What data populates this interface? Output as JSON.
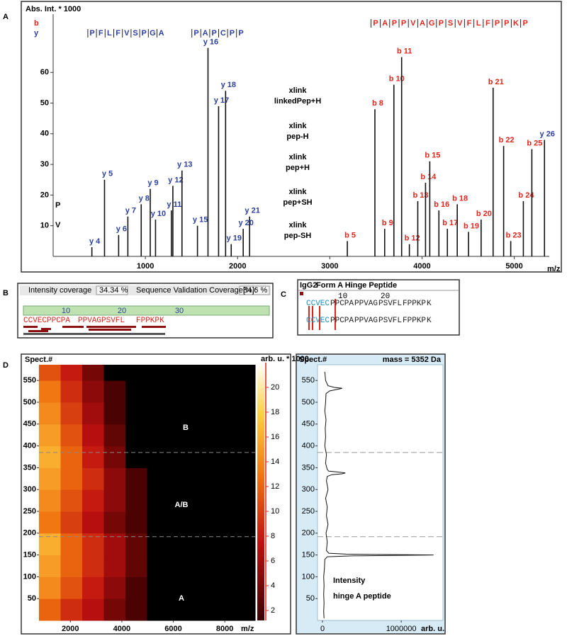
{
  "panel_labels": [
    "A",
    "B",
    "C",
    "D"
  ],
  "chart_data": [
    {
      "type": "stick",
      "y_label": "Abs. Int. * 1000",
      "x_label": "m/z",
      "xlim": [
        0,
        5380
      ],
      "ylim": [
        0,
        79
      ],
      "xticks": [
        1000,
        2000,
        3000,
        4000,
        5000
      ],
      "yticks": [
        10,
        20,
        30,
        40,
        50,
        60
      ],
      "series": [
        {
          "name": "b",
          "color": "#e0261c",
          "x": [
            3190,
            3489,
            3595,
            3695,
            3779,
            3863,
            3954,
            4038,
            4084,
            4183,
            4275,
            4382,
            4504,
            4641,
            4771,
            4885,
            4962,
            5099,
            5191
          ],
          "values": [
            5,
            48,
            9,
            56,
            65,
            4,
            18,
            24,
            31,
            15,
            9,
            17,
            8,
            12,
            55,
            36,
            5,
            18,
            35
          ],
          "labels": [
            "b 5",
            "b 8",
            "b 9",
            "b 10",
            "b 11",
            "b 12",
            "b 13",
            "b 14",
            "b 15",
            "b 16",
            "b 17",
            "b 18",
            "b 19",
            "b 20",
            "b 21",
            "b 22",
            "b 23",
            "b 24",
            "b 25"
          ]
        },
        {
          "name": "y",
          "color": "#2b3f9e",
          "x": [
            420,
            557,
            710,
            810,
            955,
            1053,
            1110,
            1282,
            1298,
            1397,
            1565,
            1679,
            1794,
            1870,
            1931,
            2061,
            2130,
            5328
          ],
          "values": [
            3,
            25,
            7,
            13,
            17,
            22,
            12,
            15,
            23,
            28,
            10,
            68,
            49,
            54,
            4,
            9,
            13,
            38
          ],
          "labels": [
            "y 4",
            "y 5",
            "y 6",
            "y 7",
            "y 8",
            "y 9",
            "y 10",
            "y 11",
            "y 12",
            "y 13",
            "y 15",
            "y 16",
            "y 17",
            "y 18",
            "y 19",
            "y 20",
            "y 21",
            "y 26"
          ]
        }
      ],
      "sequences": [
        {
          "color": "#2b3f9e",
          "residues": [
            "P",
            "F",
            "L",
            "F",
            "V",
            "S",
            "P",
            "G",
            "A"
          ]
        },
        {
          "color": "#2b3f9e",
          "residues": [
            "P",
            "A",
            "P",
            "C",
            "P",
            "P"
          ]
        },
        {
          "color": "#e0261c",
          "residues": [
            "P",
            "A",
            "P",
            "P",
            "V",
            "A",
            "G",
            "P",
            "S",
            "V",
            "F",
            "L",
            "F",
            "P",
            "P",
            "K",
            "P"
          ]
        }
      ],
      "annotations": [
        [
          "P"
        ],
        [
          "V"
        ],
        [
          "xlink",
          "linkedPep+H"
        ],
        [
          "xlink",
          "pep-H"
        ],
        [
          "xlink",
          "pep+H"
        ],
        [
          "xlink",
          "pep+SH"
        ],
        [
          "xlink",
          "pep-SH"
        ]
      ]
    },
    {
      "type": "heatmap",
      "y_label": "Spect.#",
      "x_label": "m/z",
      "colorbar_label": "arb. u. * 1000",
      "xlim": [
        780,
        9180
      ],
      "ylim": [
        0,
        586
      ],
      "xticks": [
        2000,
        4000,
        6000,
        8000
      ],
      "yticks": [
        50,
        100,
        150,
        200,
        250,
        300,
        350,
        400,
        450,
        500,
        550
      ],
      "zlim": [
        1.2,
        22
      ],
      "zticks": [
        2,
        4,
        6,
        8,
        10,
        12,
        14,
        16,
        18,
        20
      ],
      "x_bins": [
        780,
        1620,
        2460,
        3300,
        4140,
        4980,
        5820,
        6660,
        7500,
        8340,
        9180
      ],
      "y_bins": [
        0,
        50,
        100,
        150,
        200,
        250,
        300,
        350,
        400,
        450,
        500,
        550,
        586
      ],
      "z": [
        [
          12,
          9,
          7,
          4,
          2,
          1,
          0,
          0,
          0,
          0
        ],
        [
          14,
          11,
          8,
          5,
          2,
          1,
          0,
          0,
          0,
          0
        ],
        [
          15,
          12,
          9,
          6,
          3,
          1,
          0,
          0,
          0,
          0
        ],
        [
          16,
          12,
          9,
          6,
          3,
          1,
          1,
          0,
          0,
          0
        ],
        [
          13,
          10,
          7,
          4,
          2,
          1,
          0,
          0,
          0,
          0
        ],
        [
          14,
          11,
          8,
          5,
          2,
          1,
          0,
          0,
          0,
          0
        ],
        [
          15,
          12,
          9,
          5,
          2,
          1,
          0,
          0,
          0,
          0
        ],
        [
          16,
          12,
          8,
          4,
          1,
          0,
          0,
          0,
          0,
          0
        ],
        [
          15,
          11,
          7,
          3,
          1,
          0,
          0,
          0,
          0,
          0
        ],
        [
          14,
          10,
          6,
          2,
          1,
          0,
          0,
          0,
          0,
          0
        ],
        [
          13,
          9,
          5,
          2,
          0,
          0,
          0,
          0,
          0,
          0
        ],
        [
          11,
          8,
          4,
          1,
          0,
          0,
          0,
          0,
          0,
          0
        ]
      ],
      "hlines": [
        192,
        385
      ],
      "regions": [
        "A",
        "A/B",
        "B"
      ]
    },
    {
      "type": "trace",
      "title": "mass = 5352 Da",
      "y_label": "Spect.#",
      "x_label": "arb. u.",
      "xlim": [
        -63000,
        1530000
      ],
      "ylim": [
        0,
        586
      ],
      "xticks": [
        0,
        1000000
      ],
      "yticks": [
        50,
        100,
        150,
        200,
        250,
        300,
        350,
        400,
        450,
        500,
        550
      ],
      "spectra": [
        5,
        20,
        40,
        60,
        80,
        100,
        120,
        140,
        146,
        148,
        150,
        152,
        154,
        160,
        180,
        200,
        220,
        240,
        260,
        280,
        300,
        320,
        330,
        334,
        336,
        338,
        340,
        342,
        346,
        360,
        380,
        400,
        420,
        440,
        460,
        480,
        500,
        520,
        526,
        530,
        532,
        534,
        538,
        550,
        570
      ],
      "values": [
        20000,
        15000,
        20000,
        15000,
        20000,
        15000,
        25000,
        30000,
        60000,
        400000,
        1410000,
        300000,
        80000,
        50000,
        60000,
        45000,
        70000,
        50000,
        60000,
        40000,
        70000,
        50000,
        60000,
        120000,
        250000,
        290000,
        200000,
        80000,
        60000,
        40000,
        50000,
        30000,
        40000,
        35000,
        45000,
        30000,
        40000,
        45000,
        90000,
        200000,
        250000,
        150000,
        70000,
        40000,
        30000
      ],
      "hlines": [
        192,
        385
      ],
      "annotation": [
        "Intensity",
        "hinge A peptide"
      ]
    }
  ],
  "panel_b": {
    "intensity_coverage_label": "Intensity coverage",
    "intensity_coverage": "34.34 %",
    "sequence_validation_label": "Sequence Validation Coverage[%]:",
    "sequence_validation": "84.6 %",
    "ruler": [
      "10",
      "20",
      "30"
    ],
    "sequence": [
      "CCVECPPCPA",
      "PPVAGPSVFL",
      "FPPKPK"
    ]
  },
  "panel_c": {
    "antibody": "IgG2",
    "title": "Form A Hinge Peptide",
    "ruler": [
      "10",
      "20"
    ],
    "rows": [
      [
        "CCVEC",
        "PPCPA",
        "PPVAG",
        "PSVFL",
        "FPPKP",
        "K"
      ],
      [
        "CCVEC",
        "PPCPA",
        "PPVAG",
        "PSVFL",
        "FPPKP",
        "K"
      ]
    ]
  }
}
